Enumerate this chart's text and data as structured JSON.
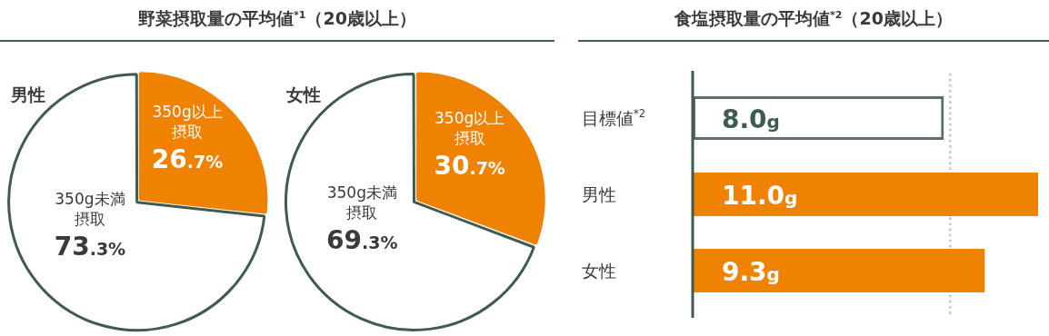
{
  "chart_data": [
    {
      "type": "pie",
      "title": "野菜摂取量の平均値$^{*1}$（20歳以上）",
      "subtitle": "男性",
      "categories": [
        "350g以上摂取",
        "350g未満摂取"
      ],
      "values": [
        26.7,
        73.3
      ],
      "colors": [
        "#ef8200",
        "#ffffff"
      ],
      "value_labels": [
        "26.7%",
        "73.3%"
      ],
      "legend": false
    },
    {
      "type": "pie",
      "subtitle": "女性",
      "categories": [
        "350g以上摂取",
        "350g未満摂取"
      ],
      "values": [
        30.7,
        69.3
      ],
      "colors": [
        "#ef8200",
        "#ffffff"
      ],
      "value_labels": [
        "30.7%",
        "69.3%"
      ],
      "legend": false
    },
    {
      "type": "bar",
      "orientation": "horizontal",
      "title": "食塩摂取量の平均値$^{*2}$（20歳以上）",
      "categories": [
        "目標値$^{*2}$",
        "男性",
        "女性"
      ],
      "values": [
        8.0,
        11.0,
        9.3
      ],
      "colors": [
        "#5f6f68",
        "#ef8200",
        "#ef8200"
      ],
      "value_labels": [
        "8.0g",
        "11.0g",
        "9.3g"
      ],
      "xlim": [
        0,
        11
      ],
      "tick_labels": "y",
      "legend": false,
      "ref_lines": [
        {
          "axis": "x",
          "value": 8.2,
          "line_style": "dotted",
          "color": "#c8c8c8"
        }
      ]
    }
  ]
}
